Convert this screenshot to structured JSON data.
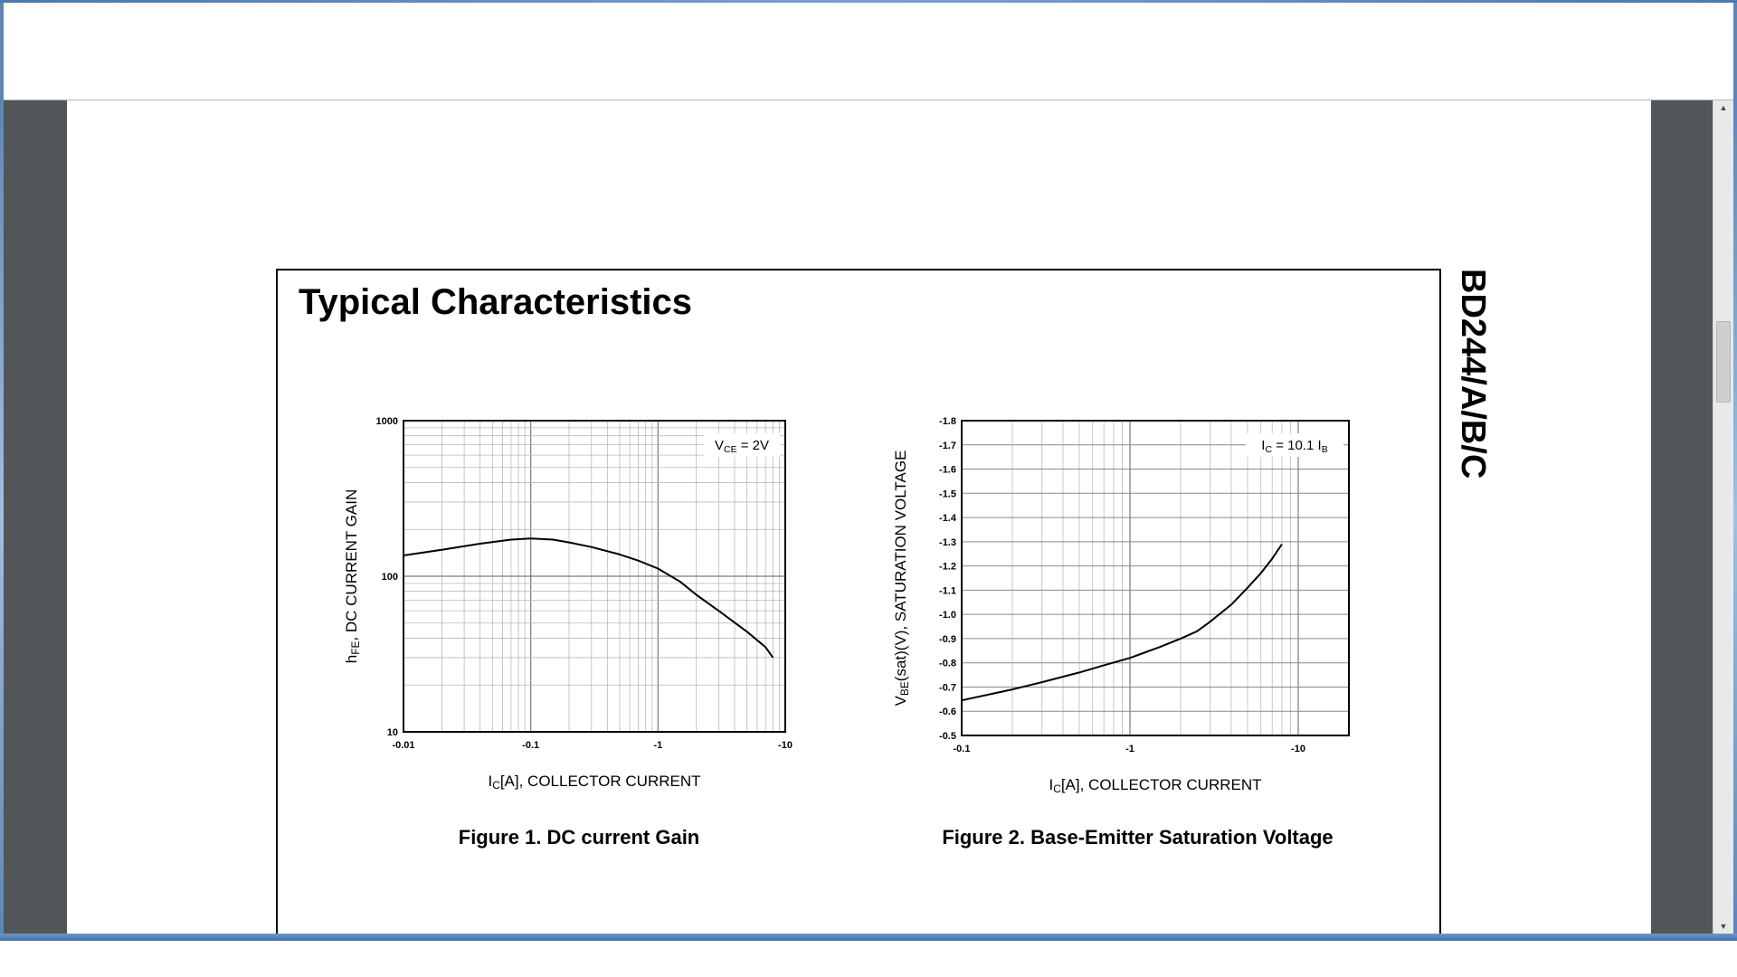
{
  "document": {
    "section_title": "Typical Characteristics",
    "side_title": "BD244/A/B/C",
    "figure1_caption": "Figure 1. DC current Gain",
    "figure2_caption": "Figure 2. Base-Emitter Saturation Voltage"
  },
  "chart_data": [
    {
      "type": "line",
      "title": "",
      "xlabel": "IC[A], COLLECTOR CURRENT",
      "xlabel_main": "I",
      "xlabel_sub": "C",
      "xlabel_rest": "[A], COLLECTOR CURRENT",
      "ylabel": "hFE, DC CURRENT GAIN",
      "ylabel_main": "h",
      "ylabel_sub": "FE",
      "ylabel_rest": ", DC CURRENT GAIN",
      "x_scale": "log",
      "y_scale": "log",
      "xlim": [
        -0.01,
        -10
      ],
      "ylim": [
        10,
        1000
      ],
      "x_ticks": [
        -0.01,
        -0.1,
        -1,
        -10
      ],
      "x_tick_labels": [
        "-0.01",
        "-0.1",
        "-1",
        "-10"
      ],
      "y_ticks": [
        10,
        100,
        1000
      ],
      "y_tick_labels": [
        "10",
        "100",
        "1000"
      ],
      "grid": true,
      "annotation": "VCE = 2V",
      "annotation_main": "V",
      "annotation_sub": "CE",
      "annotation_rest": " = 2V",
      "series": [
        {
          "x": [
            -0.01,
            -0.02,
            -0.04,
            -0.07,
            -0.1,
            -0.15,
            -0.2,
            -0.3,
            -0.5,
            -0.7,
            -1,
            -1.5,
            -2,
            -3,
            -5,
            -7,
            -8
          ],
          "y": [
            136,
            148,
            162,
            172,
            175,
            172,
            165,
            154,
            138,
            126,
            112,
            92,
            76,
            60,
            44,
            35,
            30
          ]
        }
      ]
    },
    {
      "type": "line",
      "title": "",
      "xlabel": "IC[A], COLLECTOR CURRENT",
      "xlabel_main": "I",
      "xlabel_sub": "C",
      "xlabel_rest": "[A], COLLECTOR CURRENT",
      "ylabel": "VBE(sat)(V), SATURATION VOLTAGE",
      "ylabel_main": "V",
      "ylabel_sub": "BE",
      "ylabel_rest": "(sat)(V), SATURATION VOLTAGE",
      "x_scale": "log",
      "y_scale": "linear",
      "xlim": [
        -0.1,
        -20
      ],
      "ylim": [
        -0.5,
        -1.8
      ],
      "x_ticks": [
        -0.1,
        -1,
        -10
      ],
      "x_tick_labels": [
        "-0.1",
        "-1",
        "-10"
      ],
      "y_ticks": [
        -0.5,
        -0.6,
        -0.7,
        -0.8,
        -0.9,
        -1.0,
        -1.1,
        -1.2,
        -1.3,
        -1.4,
        -1.5,
        -1.6,
        -1.7,
        -1.8
      ],
      "y_tick_labels": [
        "-0.5",
        "-0.6",
        "-0.7",
        "-0.8",
        "-0.9",
        "-1.0",
        "-1.1",
        "-1.2",
        "-1.3",
        "-1.4",
        "-1.5",
        "-1.6",
        "-1.7",
        "-1.8"
      ],
      "grid": true,
      "annotation": "IC = 10.1 IB",
      "annotation_main": "I",
      "annotation_sub": "C",
      "annotation_rest": " = 10.1 I",
      "annotation_sub2": "B",
      "series": [
        {
          "x": [
            -0.1,
            -0.2,
            -0.3,
            -0.5,
            -0.7,
            -1,
            -1.5,
            -2,
            -2.5,
            -3,
            -4,
            -5,
            -6,
            -7,
            -8
          ],
          "y": [
            -0.645,
            -0.69,
            -0.72,
            -0.76,
            -0.79,
            -0.82,
            -0.865,
            -0.9,
            -0.93,
            -0.97,
            -1.04,
            -1.11,
            -1.17,
            -1.23,
            -1.29
          ]
        }
      ]
    }
  ]
}
